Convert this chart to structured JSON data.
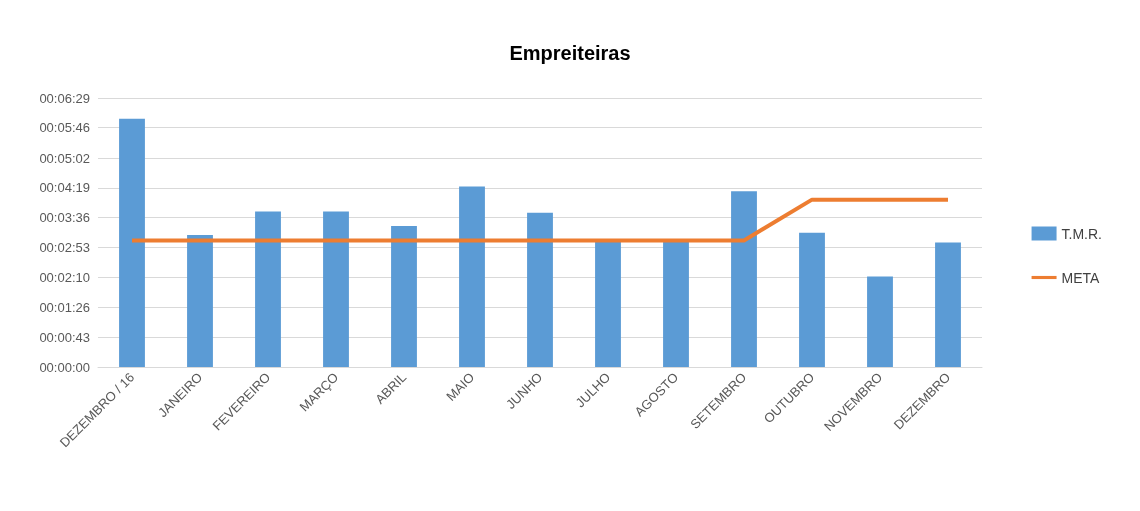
{
  "chart_data": {
    "type": "bar",
    "title": "Empreiteiras",
    "categories": [
      "DEZEMBRO / 16",
      "JANEIRO",
      "FEVEREIRO",
      "MARÇO",
      "ABRIL",
      "MAIO",
      "JUNHO",
      "JULHO",
      "AGOSTO",
      "SETEMBRO",
      "OUTUBRO",
      "NOVEMBRO",
      "DEZEMBRO"
    ],
    "series": [
      {
        "name": "T.M.R.",
        "color": "#5b9bd5",
        "values": [
          359,
          191,
          225,
          225,
          204,
          261,
          223,
          183,
          183,
          254,
          194,
          131,
          180
        ]
      },
      {
        "name": "META",
        "type": "line",
        "color": "#ed7d31",
        "marker": "none",
        "values": [
          183,
          183,
          183,
          183,
          183,
          183,
          183,
          183,
          183,
          183,
          242,
          242,
          242
        ]
      }
    ],
    "ylim": [
      0,
      389
    ],
    "yticks": [
      {
        "value": 0,
        "label": "00:00:00"
      },
      {
        "value": 43,
        "label": "00:00:43"
      },
      {
        "value": 86,
        "label": "00:01:26"
      },
      {
        "value": 130,
        "label": "00:02:10"
      },
      {
        "value": 173,
        "label": "00:02:53"
      },
      {
        "value": 216,
        "label": "00:03:36"
      },
      {
        "value": 259,
        "label": "00:04:19"
      },
      {
        "value": 302,
        "label": "00:05:02"
      },
      {
        "value": 346,
        "label": "00:05:46"
      },
      {
        "value": 389,
        "label": "00:06:29"
      }
    ],
    "grid": "y",
    "legend": "right"
  }
}
